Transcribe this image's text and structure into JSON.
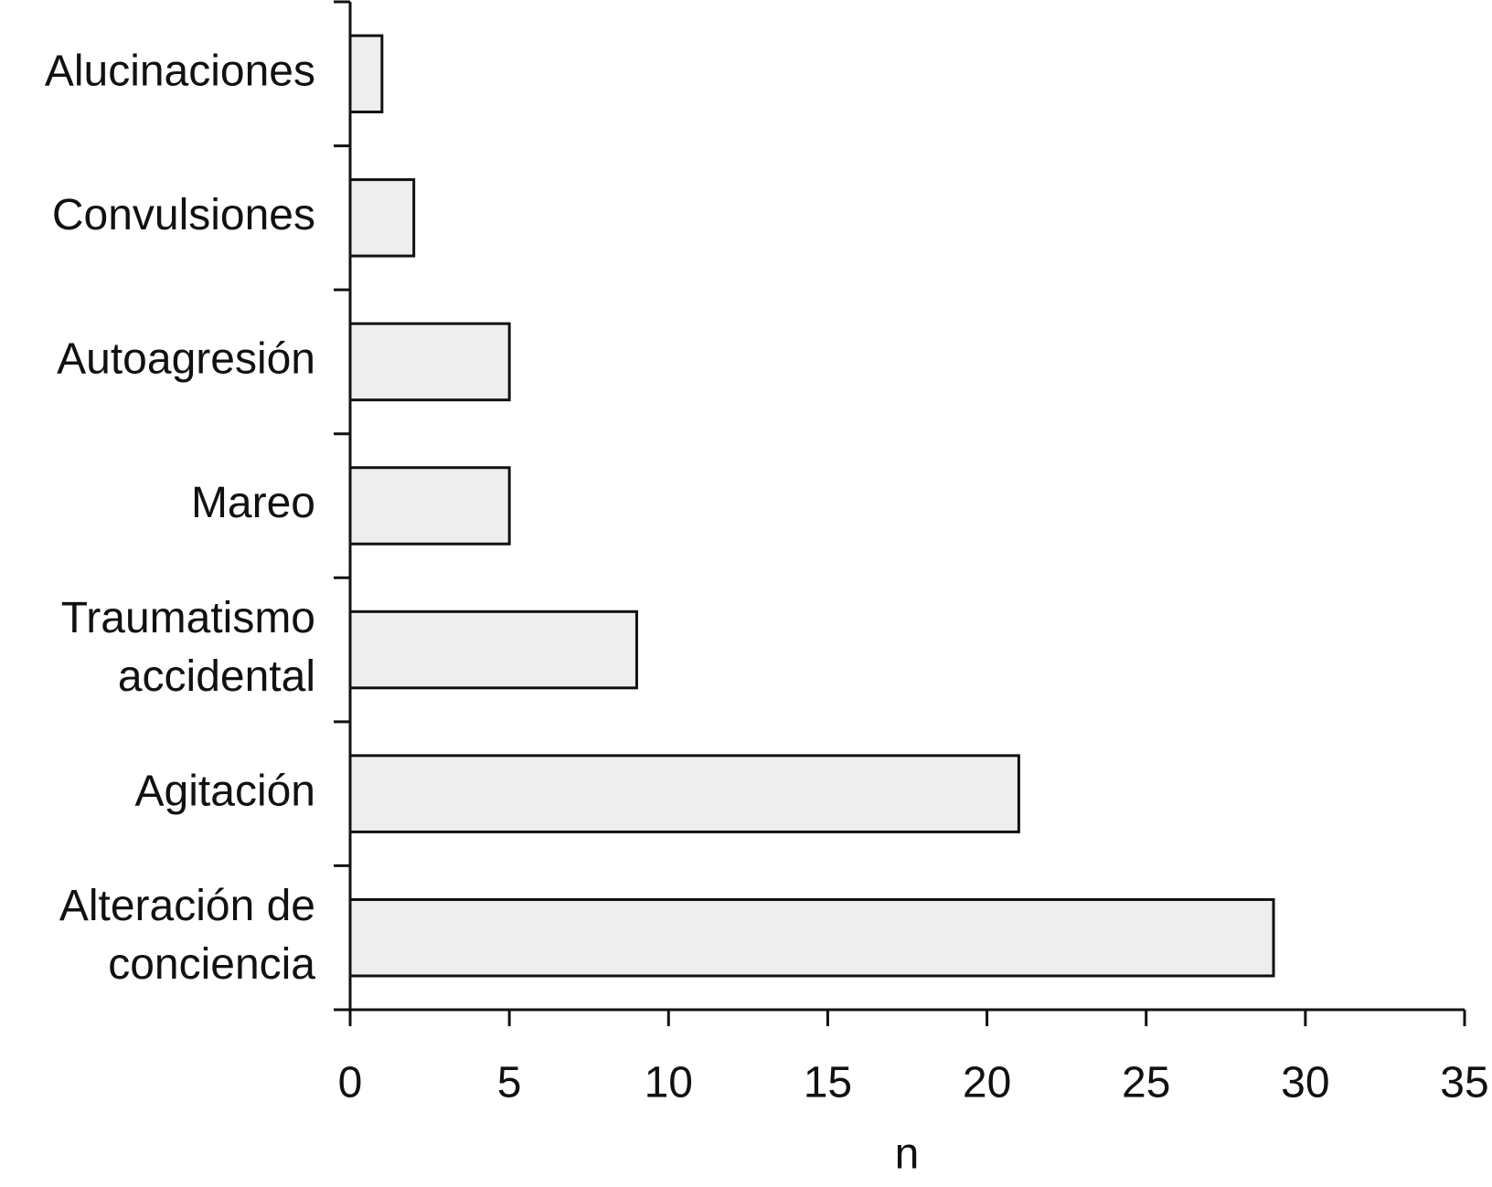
{
  "chart_data": {
    "type": "bar",
    "orientation": "horizontal",
    "categories": [
      "Alucinaciones",
      "Convulsiones",
      "Autoagresión",
      "Mareo",
      "Traumatismo\naccidental",
      "Agitación",
      "Alteración de\nconciencia"
    ],
    "values": [
      1,
      2,
      5,
      5,
      9,
      21,
      29
    ],
    "color": "#eeeeee",
    "xlabel": "n",
    "xlim": [
      0,
      35
    ],
    "xticks": [
      0,
      5,
      10,
      15,
      20,
      25,
      30,
      35
    ]
  }
}
